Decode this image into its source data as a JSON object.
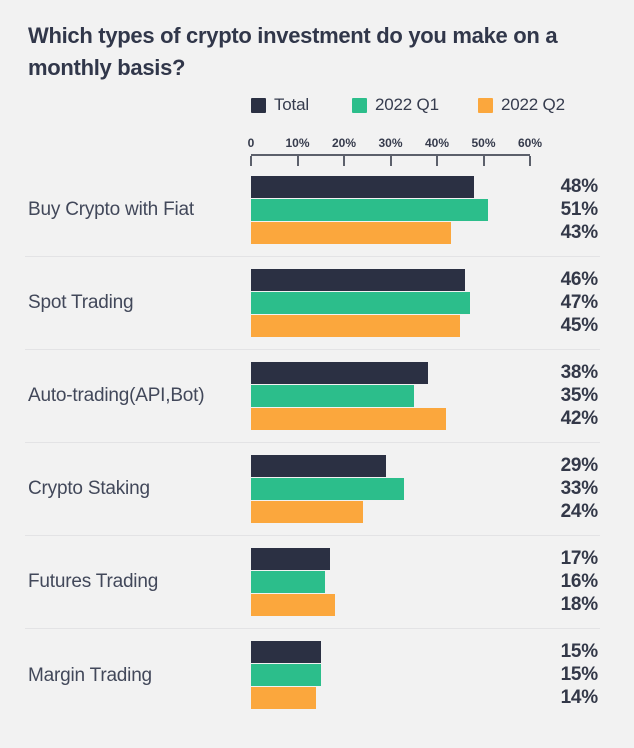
{
  "title": {
    "line1": "Which types of crypto investment do you make on a",
    "line2": "monthly basis?"
  },
  "chart_data": {
    "type": "bar",
    "orientation": "horizontal",
    "title": "Which types of crypto investment do you make on a monthly basis?",
    "categories": [
      "Buy Crypto with Fiat",
      "Spot Trading",
      "Auto-trading(API,Bot)",
      "Crypto Staking",
      "Futures Trading",
      "Margin Trading"
    ],
    "series": [
      {
        "name": "Total",
        "color": "#2b3043",
        "values": [
          48,
          46,
          38,
          29,
          17,
          15
        ]
      },
      {
        "name": "2022 Q1",
        "color": "#2cbe8b",
        "values": [
          51,
          47,
          35,
          33,
          16,
          15
        ]
      },
      {
        "name": "2022 Q2",
        "color": "#fba73d",
        "values": [
          43,
          45,
          42,
          24,
          18,
          14
        ]
      }
    ],
    "value_suffix": "%",
    "axis": {
      "ticks": [
        "0",
        "10%",
        "20%",
        "30%",
        "40%",
        "50%",
        "60%"
      ],
      "min": 0,
      "max": 60
    },
    "legend_position": "top",
    "grid": false
  },
  "colors": {
    "background": "#f2f2f2",
    "title_text": "#31374a",
    "category_text": "#42485a",
    "value_text": "#333848",
    "axis_text": "#363b4c",
    "ruler": "#5c606b",
    "divider": "#e3e3e5"
  }
}
